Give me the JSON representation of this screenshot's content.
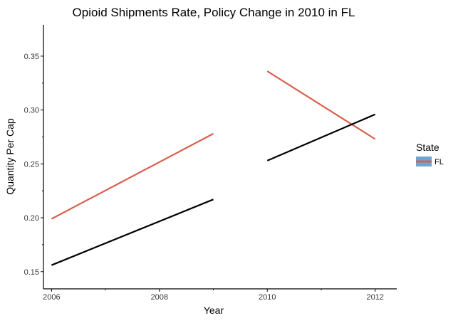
{
  "chart_data": {
    "type": "line",
    "title": "Opioid Shipments Rate, Policy Change in 2010 in FL",
    "xlabel": "Year",
    "ylabel": "Quantity Per Cap",
    "xlim": [
      2005.85,
      2012.4
    ],
    "ylim": [
      0.134,
      0.379
    ],
    "x_ticks": [
      2006,
      2008,
      2010,
      2012
    ],
    "x_tick_labels": [
      "2006",
      "2008",
      "2010",
      "2012"
    ],
    "x_minor_ticks": [
      2007,
      2009,
      2011
    ],
    "y_ticks": [
      0.15,
      0.2,
      0.25,
      0.3,
      0.35
    ],
    "y_tick_labels": [
      "0.15",
      "0.20",
      "0.25",
      "0.30",
      "0.35"
    ],
    "grid": false,
    "legend": {
      "title": "State",
      "position": "right",
      "entries": [
        {
          "label": "FL",
          "color": "#d9604f"
        }
      ]
    },
    "series": [
      {
        "color": "#d9604f",
        "points": [
          [
            2006,
            0.199
          ],
          [
            2009,
            0.278
          ]
        ]
      },
      {
        "color": "#000000",
        "points": [
          [
            2006,
            0.156
          ],
          [
            2009,
            0.217
          ]
        ]
      },
      {
        "color": "#d9604f",
        "points": [
          [
            2010,
            0.336
          ],
          [
            2012,
            0.273
          ]
        ]
      },
      {
        "color": "#000000",
        "points": [
          [
            2010,
            0.253
          ],
          [
            2012,
            0.296
          ]
        ]
      }
    ]
  }
}
